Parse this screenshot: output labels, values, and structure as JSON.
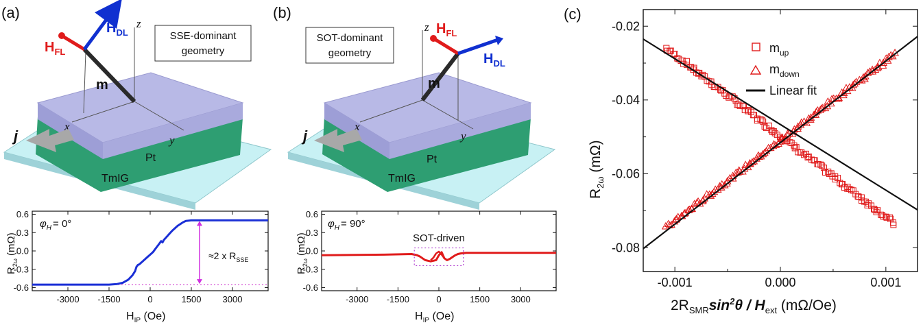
{
  "panel_a": {
    "label": "(a)",
    "geometry_box": [
      "SSE-dominant",
      "geometry"
    ],
    "H_FL": {
      "main": "H",
      "sub": "FL"
    },
    "H_DL": {
      "main": "H",
      "sub": "DL"
    },
    "m": "m",
    "j": "j",
    "axes": {
      "x": "x",
      "y": "y",
      "z": "z"
    },
    "pt": "Pt",
    "tmig": "TmIG",
    "colors": {
      "fl": "#e01b1b",
      "dl": "#1030d0"
    }
  },
  "panel_b": {
    "label": "(b)",
    "geometry_box": [
      "SOT-dominant",
      "geometry"
    ],
    "H_FL": {
      "main": "H",
      "sub": "FL"
    },
    "H_DL": {
      "main": "H",
      "sub": "DL"
    },
    "m": "m",
    "j": "j",
    "axes": {
      "x": "x",
      "y": "y",
      "z": "z"
    },
    "pt": "Pt",
    "tmig": "TmIG"
  },
  "panel_c_label": "(c)",
  "chart_data": [
    {
      "type": "line",
      "phi_label": {
        "sym": "φ",
        "sub": "H",
        "rest": "= 0°"
      },
      "annotation": {
        "pre": "≈2 x R",
        "sub": "SSE"
      },
      "ylabel": {
        "main": "R",
        "sub": "2ω",
        "unit": " (mΩ)"
      },
      "xlabel": {
        "main": "H",
        "sub": "IP",
        "unit": " (Oe)"
      },
      "xlim": [
        -4300,
        4300
      ],
      "ylim": [
        -0.65,
        0.65
      ],
      "xticks": [
        "-3000",
        "-1500",
        "0",
        "1500",
        "3000"
      ],
      "xtick_values": [
        -3000,
        -1500,
        0,
        1500,
        3000
      ],
      "yticks": [
        "0.6",
        "0.3",
        "0.0",
        "-0.3",
        "-0.6"
      ],
      "ytick_values": [
        0.6,
        0.3,
        0.0,
        -0.3,
        -0.6
      ],
      "color": "#1a2fd6",
      "x": [
        -4300,
        -1500,
        -1200,
        -1000,
        -800,
        -650,
        -550,
        -500,
        -450,
        -400,
        -300,
        -200,
        -100,
        0,
        100,
        200,
        300,
        400,
        450,
        500,
        600,
        700,
        800,
        900,
        1000,
        1100,
        1200,
        1300,
        1500,
        4300
      ],
      "y": [
        -0.55,
        -0.55,
        -0.54,
        -0.52,
        -0.47,
        -0.4,
        -0.33,
        -0.26,
        -0.23,
        -0.22,
        -0.18,
        -0.14,
        -0.1,
        -0.06,
        -0.02,
        0.04,
        0.1,
        0.16,
        0.14,
        0.18,
        0.23,
        0.28,
        0.33,
        0.37,
        0.41,
        0.44,
        0.47,
        0.49,
        0.5,
        0.5
      ]
    },
    {
      "type": "line",
      "phi_label": {
        "sym": "φ",
        "sub": "H",
        "rest": "= 90°"
      },
      "annotation": {
        "pre": "SOT-driven"
      },
      "ylabel": {
        "main": "R",
        "sub": "2ω",
        "unit": " (mΩ)"
      },
      "xlabel": {
        "main": "H",
        "sub": "IP",
        "unit": " (Oe)"
      },
      "xlim": [
        -4300,
        4300
      ],
      "ylim": [
        -0.65,
        0.65
      ],
      "xticks": [
        "-3000",
        "-1500",
        "0",
        "1500",
        "3000"
      ],
      "xtick_values": [
        -3000,
        -1500,
        0,
        1500,
        3000
      ],
      "yticks": [
        "0.6",
        "0.3",
        "0.0",
        "-0.3",
        "-0.6"
      ],
      "ytick_values": [
        0.6,
        0.3,
        0.0,
        -0.3,
        -0.6
      ],
      "color": "#e01b1b",
      "x": [
        -4300,
        -2000,
        -1000,
        -800,
        -700,
        -600,
        -500,
        -400,
        -300,
        -200,
        -100,
        0,
        100,
        200,
        300,
        400,
        500,
        600,
        700,
        800,
        1000,
        2000,
        4300
      ],
      "y": [
        -0.07,
        -0.06,
        -0.05,
        -0.07,
        -0.09,
        -0.12,
        -0.15,
        -0.16,
        -0.17,
        -0.16,
        -0.15,
        -0.07,
        -0.02,
        -0.12,
        -0.15,
        -0.13,
        -0.1,
        -0.07,
        -0.05,
        -0.04,
        -0.03,
        -0.03,
        -0.03
      ],
      "x2": [
        -300,
        -200,
        -100,
        0,
        100,
        200,
        300
      ],
      "y2": [
        -0.15,
        -0.11,
        -0.04,
        -0.01,
        -0.06,
        -0.12,
        -0.15
      ]
    },
    {
      "type": "scatter",
      "ylabel": {
        "main": "R",
        "sub": "2ω",
        "unit": "  (mΩ)"
      },
      "xlabel": {
        "pre": "2R",
        "sub": "SMR",
        "mid": "sin",
        "sup": "2",
        "theta": "θ",
        "slash": " / H",
        "sub2": "ext",
        "unit": " (mΩ/Oe)"
      },
      "xlim": [
        -0.0013,
        0.0013
      ],
      "ylim": [
        -0.0865,
        -0.0155
      ],
      "xticks": [
        "-0.001",
        "0.000",
        "0.001"
      ],
      "xtick_values": [
        -0.001,
        0.0,
        0.001
      ],
      "yticks": [
        "-0.02",
        "-0.04",
        "-0.06",
        "-0.08"
      ],
      "ytick_values": [
        -0.02,
        -0.04,
        -0.06,
        -0.08
      ],
      "legend": [
        {
          "main": "m",
          "sub": "up",
          "marker": "square"
        },
        {
          "main": "m",
          "sub": "down",
          "marker": "triangle"
        },
        {
          "main": "Linear fit",
          "marker": "line"
        }
      ],
      "series": [
        {
          "name": "m_up",
          "marker": "square",
          "x_range": [
            -0.00108,
            0.00108
          ],
          "y_at_range": [
            -0.026,
            -0.0735
          ],
          "noise": 0.0012
        },
        {
          "name": "m_down",
          "marker": "triangle",
          "x_range": [
            -0.00108,
            0.00108
          ],
          "y_at_range": [
            -0.0745,
            -0.0275
          ],
          "noise": 0.0012
        }
      ],
      "fits": [
        {
          "x": [
            -0.0013,
            0.0013
          ],
          "y": [
            -0.0235,
            -0.0698
          ]
        },
        {
          "x": [
            -0.0013,
            0.0013
          ],
          "y": [
            -0.0803,
            -0.0228
          ]
        }
      ],
      "color": "#e01b1b"
    }
  ]
}
